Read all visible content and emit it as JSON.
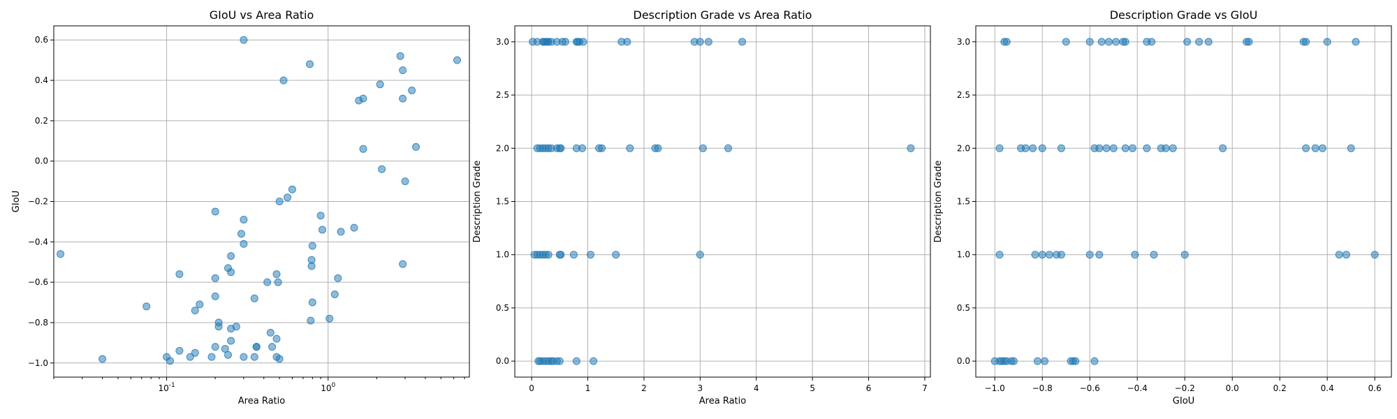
{
  "chart_data": [
    {
      "type": "scatter",
      "title": "GIoU vs Area Ratio",
      "xlabel": "Area Ratio",
      "ylabel": "GIoU",
      "xscale": "log",
      "xlim": [
        0.02,
        7.5
      ],
      "ylim": [
        -1.07,
        0.67
      ],
      "xticks": [
        0.1,
        1
      ],
      "xtick_labels": [
        "10^-1",
        "10^0"
      ],
      "yticks": [
        -1.0,
        -0.8,
        -0.6,
        -0.4,
        -0.2,
        0.0,
        0.2,
        0.4,
        0.6
      ],
      "ytick_labels": [
        "−1.0",
        "−0.8",
        "−0.6",
        "−0.4",
        "−0.2",
        "0.0",
        "0.2",
        "0.4",
        "0.6"
      ],
      "grid": true,
      "color": "#1f77b4",
      "points": [
        [
          0.022,
          -0.46
        ],
        [
          0.04,
          -0.98
        ],
        [
          0.075,
          -0.72
        ],
        [
          0.1,
          -0.97
        ],
        [
          0.105,
          -0.99
        ],
        [
          0.12,
          -0.94
        ],
        [
          0.12,
          -0.56
        ],
        [
          0.14,
          -0.97
        ],
        [
          0.15,
          -0.95
        ],
        [
          0.15,
          -0.74
        ],
        [
          0.16,
          -0.71
        ],
        [
          0.19,
          -0.97
        ],
        [
          0.2,
          -0.92
        ],
        [
          0.2,
          -0.67
        ],
        [
          0.2,
          -0.58
        ],
        [
          0.2,
          -0.25
        ],
        [
          0.21,
          -0.8
        ],
        [
          0.21,
          -0.82
        ],
        [
          0.23,
          -0.93
        ],
        [
          0.24,
          -0.96
        ],
        [
          0.24,
          -0.53
        ],
        [
          0.25,
          -0.55
        ],
        [
          0.25,
          -0.89
        ],
        [
          0.25,
          -0.83
        ],
        [
          0.25,
          -0.47
        ],
        [
          0.27,
          -0.82
        ],
        [
          0.29,
          -0.36
        ],
        [
          0.3,
          -0.97
        ],
        [
          0.3,
          -0.41
        ],
        [
          0.3,
          -0.29
        ],
        [
          0.3,
          0.6
        ],
        [
          0.35,
          -0.97
        ],
        [
          0.35,
          -0.68
        ],
        [
          0.36,
          -0.92
        ],
        [
          0.36,
          -0.92
        ],
        [
          0.42,
          -0.6
        ],
        [
          0.44,
          -0.85
        ],
        [
          0.45,
          -0.92
        ],
        [
          0.48,
          -0.97
        ],
        [
          0.48,
          -0.88
        ],
        [
          0.48,
          -0.56
        ],
        [
          0.49,
          -0.6
        ],
        [
          0.5,
          -0.98
        ],
        [
          0.5,
          -0.2
        ],
        [
          0.53,
          0.4
        ],
        [
          0.56,
          -0.18
        ],
        [
          0.6,
          -0.14
        ],
        [
          0.77,
          0.48
        ],
        [
          0.78,
          -0.79
        ],
        [
          0.79,
          -0.52
        ],
        [
          0.79,
          -0.49
        ],
        [
          0.8,
          -0.7
        ],
        [
          0.8,
          -0.42
        ],
        [
          0.9,
          -0.27
        ],
        [
          0.92,
          -0.34
        ],
        [
          1.02,
          -0.78
        ],
        [
          1.1,
          -0.66
        ],
        [
          1.15,
          -0.58
        ],
        [
          1.2,
          -0.35
        ],
        [
          1.45,
          -0.33
        ],
        [
          1.55,
          0.3
        ],
        [
          1.65,
          0.31
        ],
        [
          1.65,
          0.06
        ],
        [
          2.1,
          0.38
        ],
        [
          2.15,
          -0.04
        ],
        [
          2.8,
          0.52
        ],
        [
          2.9,
          0.45
        ],
        [
          2.9,
          0.31
        ],
        [
          2.9,
          -0.51
        ],
        [
          3.0,
          -0.1
        ],
        [
          3.3,
          0.35
        ],
        [
          3.5,
          0.07
        ],
        [
          6.3,
          0.5
        ]
      ]
    },
    {
      "type": "scatter",
      "title": "Description Grade vs Area Ratio",
      "xlabel": "Area Ratio",
      "ylabel": "Description Grade",
      "xscale": "linear",
      "xlim": [
        -0.3,
        7.1
      ],
      "ylim": [
        -0.15,
        3.15
      ],
      "xticks": [
        0,
        1,
        2,
        3,
        4,
        5,
        6,
        7
      ],
      "xtick_labels": [
        "0",
        "1",
        "2",
        "3",
        "4",
        "5",
        "6",
        "7"
      ],
      "yticks": [
        0.0,
        0.5,
        1.0,
        1.5,
        2.0,
        2.5,
        3.0
      ],
      "ytick_labels": [
        "0.0",
        "0.5",
        "1.0",
        "1.5",
        "2.0",
        "2.5",
        "3.0"
      ],
      "grid": true,
      "color": "#1f77b4",
      "points": [
        [
          0.02,
          3
        ],
        [
          0.1,
          3
        ],
        [
          0.2,
          3
        ],
        [
          0.22,
          3
        ],
        [
          0.25,
          3
        ],
        [
          0.28,
          3
        ],
        [
          0.3,
          3
        ],
        [
          0.35,
          3
        ],
        [
          0.45,
          3
        ],
        [
          0.55,
          3
        ],
        [
          0.6,
          3
        ],
        [
          0.8,
          3
        ],
        [
          0.82,
          3
        ],
        [
          0.85,
          3
        ],
        [
          0.92,
          3
        ],
        [
          1.6,
          3
        ],
        [
          1.7,
          3
        ],
        [
          2.9,
          3
        ],
        [
          3.0,
          3
        ],
        [
          3.15,
          3
        ],
        [
          3.75,
          3
        ],
        [
          0.1,
          2
        ],
        [
          0.15,
          2
        ],
        [
          0.2,
          2
        ],
        [
          0.25,
          2
        ],
        [
          0.3,
          2
        ],
        [
          0.35,
          2
        ],
        [
          0.45,
          2
        ],
        [
          0.5,
          2
        ],
        [
          0.52,
          2
        ],
        [
          0.8,
          2
        ],
        [
          0.9,
          2
        ],
        [
          1.2,
          2
        ],
        [
          1.25,
          2
        ],
        [
          1.75,
          2
        ],
        [
          2.2,
          2
        ],
        [
          2.25,
          2
        ],
        [
          3.05,
          2
        ],
        [
          3.5,
          2
        ],
        [
          6.75,
          2
        ],
        [
          0.05,
          1
        ],
        [
          0.1,
          1
        ],
        [
          0.15,
          1
        ],
        [
          0.2,
          1
        ],
        [
          0.25,
          1
        ],
        [
          0.3,
          1
        ],
        [
          0.5,
          1
        ],
        [
          0.52,
          1
        ],
        [
          0.75,
          1
        ],
        [
          1.05,
          1
        ],
        [
          1.5,
          1
        ],
        [
          3.0,
          1
        ],
        [
          0.12,
          0
        ],
        [
          0.15,
          0
        ],
        [
          0.2,
          0
        ],
        [
          0.25,
          0
        ],
        [
          0.3,
          0
        ],
        [
          0.35,
          0
        ],
        [
          0.38,
          0
        ],
        [
          0.45,
          0
        ],
        [
          0.5,
          0
        ],
        [
          0.8,
          0
        ],
        [
          1.1,
          0
        ]
      ]
    },
    {
      "type": "scatter",
      "title": "Description Grade vs GIoU",
      "xlabel": "GIoU",
      "ylabel": "Description Grade",
      "xscale": "linear",
      "xlim": [
        -1.08,
        0.67
      ],
      "ylim": [
        -0.15,
        3.15
      ],
      "xticks": [
        -1.0,
        -0.8,
        -0.6,
        -0.4,
        -0.2,
        0.0,
        0.2,
        0.4,
        0.6
      ],
      "xtick_labels": [
        "−1.0",
        "−0.8",
        "−0.6",
        "−0.4",
        "−0.2",
        "0.0",
        "0.2",
        "0.4",
        "0.6"
      ],
      "yticks": [
        0.0,
        0.5,
        1.0,
        1.5,
        2.0,
        2.5,
        3.0
      ],
      "ytick_labels": [
        "0.0",
        "0.5",
        "1.0",
        "1.5",
        "2.0",
        "2.5",
        "3.0"
      ],
      "grid": true,
      "color": "#1f77b4",
      "points": [
        [
          -0.96,
          3
        ],
        [
          -0.95,
          3
        ],
        [
          -0.7,
          3
        ],
        [
          -0.6,
          3
        ],
        [
          -0.55,
          3
        ],
        [
          -0.52,
          3
        ],
        [
          -0.49,
          3
        ],
        [
          -0.46,
          3
        ],
        [
          -0.45,
          3
        ],
        [
          -0.36,
          3
        ],
        [
          -0.34,
          3
        ],
        [
          -0.19,
          3
        ],
        [
          -0.14,
          3
        ],
        [
          -0.1,
          3
        ],
        [
          0.06,
          3
        ],
        [
          0.07,
          3
        ],
        [
          0.3,
          3
        ],
        [
          0.31,
          3
        ],
        [
          0.4,
          3
        ],
        [
          0.52,
          3
        ],
        [
          -0.98,
          2
        ],
        [
          -0.89,
          2
        ],
        [
          -0.87,
          2
        ],
        [
          -0.84,
          2
        ],
        [
          -0.8,
          2
        ],
        [
          -0.72,
          2
        ],
        [
          -0.58,
          2
        ],
        [
          -0.56,
          2
        ],
        [
          -0.53,
          2
        ],
        [
          -0.5,
          2
        ],
        [
          -0.45,
          2
        ],
        [
          -0.42,
          2
        ],
        [
          -0.36,
          2
        ],
        [
          -0.3,
          2
        ],
        [
          -0.28,
          2
        ],
        [
          -0.25,
          2
        ],
        [
          -0.04,
          2
        ],
        [
          0.31,
          2
        ],
        [
          0.35,
          2
        ],
        [
          0.38,
          2
        ],
        [
          0.5,
          2
        ],
        [
          -0.98,
          1
        ],
        [
          -0.83,
          1
        ],
        [
          -0.8,
          1
        ],
        [
          -0.77,
          1
        ],
        [
          -0.74,
          1
        ],
        [
          -0.72,
          1
        ],
        [
          -0.6,
          1
        ],
        [
          -0.56,
          1
        ],
        [
          -0.41,
          1
        ],
        [
          -0.33,
          1
        ],
        [
          -0.2,
          1
        ],
        [
          0.45,
          1
        ],
        [
          0.48,
          1
        ],
        [
          0.6,
          1
        ],
        [
          -1.0,
          0
        ],
        [
          -0.98,
          0
        ],
        [
          -0.97,
          0
        ],
        [
          -0.96,
          0
        ],
        [
          -0.95,
          0
        ],
        [
          -0.93,
          0
        ],
        [
          -0.92,
          0
        ],
        [
          -0.82,
          0
        ],
        [
          -0.79,
          0
        ],
        [
          -0.68,
          0
        ],
        [
          -0.67,
          0
        ],
        [
          -0.66,
          0
        ],
        [
          -0.58,
          0
        ]
      ]
    }
  ]
}
